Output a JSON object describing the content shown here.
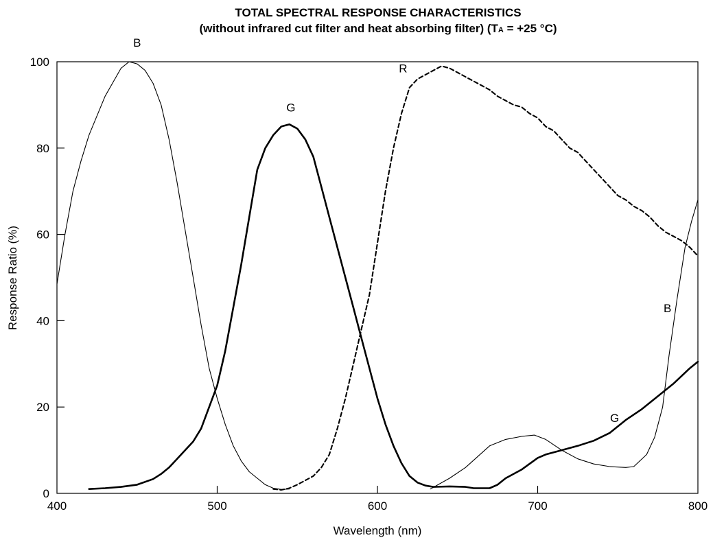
{
  "chart_data": {
    "type": "line",
    "title_line1": "TOTAL SPECTRAL RESPONSE CHARACTERISTICS",
    "title_line2_pre": "(without infrared cut filter and heat absorbing filter) (T",
    "title_line2_sub": "A",
    "title_line2_post": " = +25 °C)",
    "xlabel": "Wavelength (nm)",
    "ylabel": "Response Ratio (%)",
    "xlim": [
      400,
      800
    ],
    "ylim": [
      0,
      100
    ],
    "x_ticks": [
      400,
      500,
      600,
      700,
      800
    ],
    "y_ticks": [
      0,
      20,
      40,
      60,
      80,
      100
    ],
    "grid": false,
    "series": [
      {
        "name": "B",
        "style": "thin",
        "points": [
          [
            400,
            48.5
          ],
          [
            405,
            60
          ],
          [
            410,
            70
          ],
          [
            415,
            77
          ],
          [
            420,
            83
          ],
          [
            430,
            92
          ],
          [
            440,
            98.5
          ],
          [
            445,
            100
          ],
          [
            450,
            99.5
          ],
          [
            455,
            98
          ],
          [
            460,
            95
          ],
          [
            465,
            90
          ],
          [
            470,
            82
          ],
          [
            475,
            72
          ],
          [
            480,
            61
          ],
          [
            485,
            50
          ],
          [
            490,
            39
          ],
          [
            495,
            29
          ],
          [
            500,
            22
          ],
          [
            505,
            16
          ],
          [
            510,
            11
          ],
          [
            515,
            7.5
          ],
          [
            520,
            5
          ],
          [
            525,
            3.5
          ],
          [
            530,
            2
          ],
          [
            535,
            1.2
          ],
          [
            540,
            0.9
          ],
          [
            545,
            1
          ]
        ]
      },
      {
        "name": "B",
        "style": "thin",
        "points": [
          [
            633,
            1
          ],
          [
            645,
            3.5
          ],
          [
            655,
            6
          ],
          [
            670,
            11
          ],
          [
            680,
            12.5
          ],
          [
            690,
            13.2
          ],
          [
            698,
            13.5
          ],
          [
            705,
            12.5
          ],
          [
            715,
            10
          ],
          [
            725,
            8
          ],
          [
            735,
            6.8
          ],
          [
            745,
            6.2
          ],
          [
            755,
            6
          ],
          [
            760,
            6.2
          ],
          [
            768,
            9
          ],
          [
            773,
            13
          ],
          [
            778,
            20
          ],
          [
            782,
            32
          ],
          [
            787,
            45
          ],
          [
            792,
            57
          ],
          [
            796,
            63
          ],
          [
            800,
            68
          ]
        ]
      },
      {
        "name": "G",
        "style": "thick",
        "points": [
          [
            420,
            1
          ],
          [
            430,
            1.2
          ],
          [
            440,
            1.5
          ],
          [
            450,
            2
          ],
          [
            460,
            3.3
          ],
          [
            465,
            4.5
          ],
          [
            470,
            6
          ],
          [
            475,
            8
          ],
          [
            480,
            10
          ],
          [
            485,
            12
          ],
          [
            490,
            15
          ],
          [
            495,
            20
          ],
          [
            500,
            25
          ],
          [
            505,
            33
          ],
          [
            510,
            43
          ],
          [
            515,
            53
          ],
          [
            520,
            64
          ],
          [
            525,
            75
          ],
          [
            530,
            80
          ],
          [
            535,
            83
          ],
          [
            540,
            85
          ],
          [
            545,
            85.5
          ],
          [
            550,
            84.5
          ],
          [
            555,
            82
          ],
          [
            560,
            78
          ],
          [
            565,
            71
          ],
          [
            570,
            64
          ],
          [
            575,
            57
          ],
          [
            580,
            50
          ],
          [
            585,
            43
          ],
          [
            590,
            36
          ],
          [
            595,
            29
          ],
          [
            600,
            22
          ],
          [
            605,
            16
          ],
          [
            610,
            11
          ],
          [
            615,
            7
          ],
          [
            620,
            4
          ],
          [
            625,
            2.5
          ],
          [
            630,
            1.8
          ],
          [
            635,
            1.5
          ],
          [
            645,
            1.6
          ],
          [
            655,
            1.5
          ],
          [
            660,
            1.2
          ],
          [
            670,
            1.2
          ],
          [
            675,
            2
          ],
          [
            680,
            3.5
          ],
          [
            690,
            5.5
          ],
          [
            700,
            8.2
          ],
          [
            705,
            9
          ],
          [
            715,
            10
          ],
          [
            725,
            11
          ],
          [
            735,
            12.2
          ],
          [
            745,
            14
          ],
          [
            755,
            17
          ],
          [
            765,
            19.5
          ],
          [
            775,
            22.5
          ],
          [
            785,
            25.5
          ],
          [
            795,
            29
          ],
          [
            800,
            30.5
          ]
        ]
      },
      {
        "name": "R",
        "style": "dashed",
        "points": [
          [
            535,
            1
          ],
          [
            540,
            0.8
          ],
          [
            545,
            1.2
          ],
          [
            550,
            2
          ],
          [
            555,
            3
          ],
          [
            560,
            4
          ],
          [
            565,
            6
          ],
          [
            570,
            9
          ],
          [
            575,
            15
          ],
          [
            580,
            22
          ],
          [
            585,
            30
          ],
          [
            590,
            38
          ],
          [
            595,
            46
          ],
          [
            600,
            58
          ],
          [
            605,
            70
          ],
          [
            610,
            80
          ],
          [
            615,
            88
          ],
          [
            620,
            94
          ],
          [
            625,
            96
          ],
          [
            630,
            97
          ],
          [
            635,
            98
          ],
          [
            640,
            99
          ],
          [
            645,
            98.5
          ],
          [
            650,
            97.5
          ],
          [
            655,
            96.5
          ],
          [
            660,
            95.5
          ],
          [
            665,
            94.5
          ],
          [
            670,
            93.5
          ],
          [
            675,
            92
          ],
          [
            680,
            91
          ],
          [
            685,
            90
          ],
          [
            690,
            89.5
          ],
          [
            695,
            88
          ],
          [
            700,
            87
          ],
          [
            705,
            85
          ],
          [
            710,
            84
          ],
          [
            715,
            82
          ],
          [
            720,
            80
          ],
          [
            725,
            79
          ],
          [
            730,
            77
          ],
          [
            735,
            75
          ],
          [
            740,
            73
          ],
          [
            745,
            71
          ],
          [
            750,
            69
          ],
          [
            755,
            68
          ],
          [
            760,
            66.5
          ],
          [
            765,
            65.5
          ],
          [
            770,
            64
          ],
          [
            775,
            62
          ],
          [
            780,
            60.5
          ],
          [
            785,
            59.5
          ],
          [
            790,
            58.5
          ],
          [
            795,
            57
          ],
          [
            800,
            55
          ]
        ]
      }
    ],
    "annotations": [
      {
        "text": "B",
        "x": 450,
        "y": 103.5
      },
      {
        "text": "G",
        "x": 546,
        "y": 88.5
      },
      {
        "text": "R",
        "x": 616,
        "y": 97.5
      },
      {
        "text": "B",
        "x": 781,
        "y": 42
      },
      {
        "text": "G",
        "x": 748,
        "y": 16.5
      }
    ]
  }
}
